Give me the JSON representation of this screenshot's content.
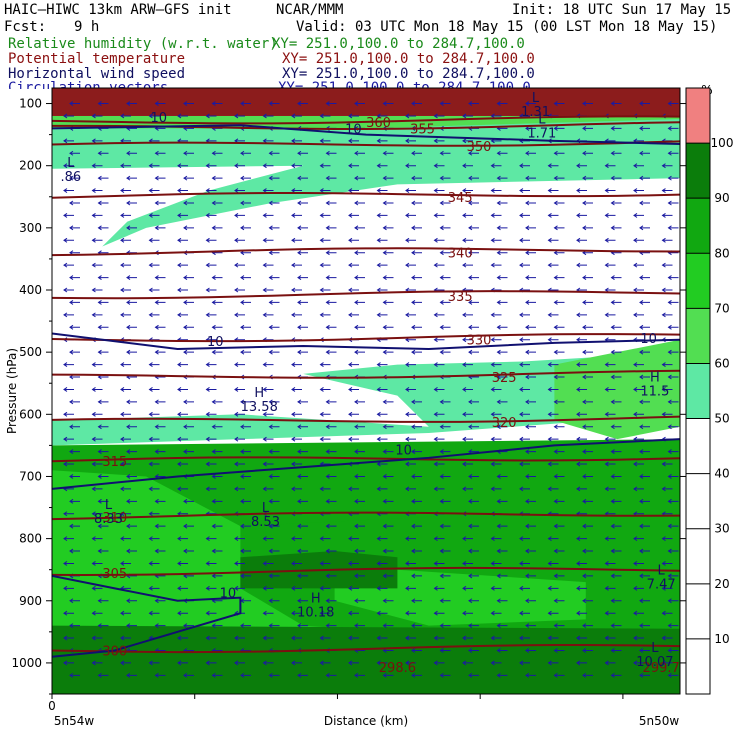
{
  "header": {
    "model": "HAIC–HIWC 13km ARW–GFS init",
    "center": "NCAR/MMM",
    "init": "Init: 18 UTC Sun 17 May 15",
    "fcst_label": "Fcst:",
    "fcst_value": "9 h",
    "valid": "Valid: 03 UTC Mon 18 May 15 (00 LST Mon 18 May 15)",
    "fields": [
      {
        "name": "Relative humidity (w.r.t. water)",
        "xy": "XY= 251.0,100.0 to 284.7,100.0",
        "color": "#1a8a1a"
      },
      {
        "name": "Potential temperature",
        "xy": "XY= 251.0,100.0 to 284.7,100.0",
        "color": "#8b1010"
      },
      {
        "name": "Horizontal wind speed",
        "xy": "XY= 251.0,100.0 to 284.7,100.0",
        "color": "#101060"
      },
      {
        "name": "Circulation vectors",
        "xy": "XY= 251.0,100.0 to 284.7,100.0",
        "color": "#1a1aa0"
      }
    ]
  },
  "chart_data": {
    "type": "heatmap",
    "title": "",
    "xlabel": "Distance (km)",
    "ylabel": "Pressure (hPa)",
    "x_ticks": [
      "0"
    ],
    "x_endpoints": {
      "left": "5n54w",
      "right": "5n50w"
    },
    "y_ticks": [
      100,
      200,
      300,
      400,
      500,
      600,
      700,
      800,
      900,
      1000
    ],
    "ylim": [
      1050,
      75
    ],
    "colorbar": {
      "unit": "%",
      "ticks": [
        10,
        20,
        30,
        40,
        50,
        60,
        70,
        80,
        90,
        100
      ],
      "bands": [
        {
          "from": 50,
          "to": 60,
          "color": "#5ee8a4"
        },
        {
          "from": 60,
          "to": 70,
          "color": "#52de52"
        },
        {
          "from": 70,
          "to": 80,
          "color": "#22cc22"
        },
        {
          "from": 80,
          "to": 90,
          "color": "#11a811"
        },
        {
          "from": 90,
          "to": 100,
          "color": "#0b7d0b"
        },
        {
          "from": 100,
          "to": 110,
          "color": "#f08080"
        }
      ]
    },
    "theta_contours": [
      {
        "value": 300,
        "label": "300",
        "p": 980
      },
      {
        "value": 305,
        "label": "305",
        "p": 855
      },
      {
        "value": 310,
        "label": "310",
        "p": 765
      },
      {
        "value": 315,
        "label": "315",
        "p": 675
      },
      {
        "value": 320,
        "label": "320",
        "p": 612
      },
      {
        "value": 325,
        "label": "325",
        "p": 540
      },
      {
        "value": 330,
        "label": "330",
        "p": 480
      },
      {
        "value": 335,
        "label": "335",
        "p": 410
      },
      {
        "value": 340,
        "label": "340",
        "p": 340
      },
      {
        "value": 345,
        "label": "345",
        "p": 250
      },
      {
        "value": 350,
        "label": "350",
        "p": 168
      },
      {
        "value": 355,
        "label": "355",
        "p": 140
      },
      {
        "value": 360,
        "label": "360",
        "p": 130
      }
    ],
    "theta_edge_labels": [
      "298.6",
      "299.7"
    ],
    "wind_labels": [
      "10",
      "10",
      "10",
      "10",
      "10",
      "10"
    ],
    "extrema": [
      {
        "type": "L",
        "value": ".86"
      },
      {
        "type": "H",
        "value": "13.58"
      },
      {
        "type": "H",
        "value": "11.5"
      },
      {
        "type": "H",
        "value": "10.18"
      },
      {
        "type": "L",
        "value": "8.33"
      },
      {
        "type": "L",
        "value": "8.53"
      },
      {
        "type": "L",
        "value": "7.47"
      },
      {
        "type": "L",
        "value": "10.07"
      },
      {
        "type": "L",
        "value": "1.71"
      },
      {
        "type": "L",
        "value": "1.31"
      }
    ]
  }
}
